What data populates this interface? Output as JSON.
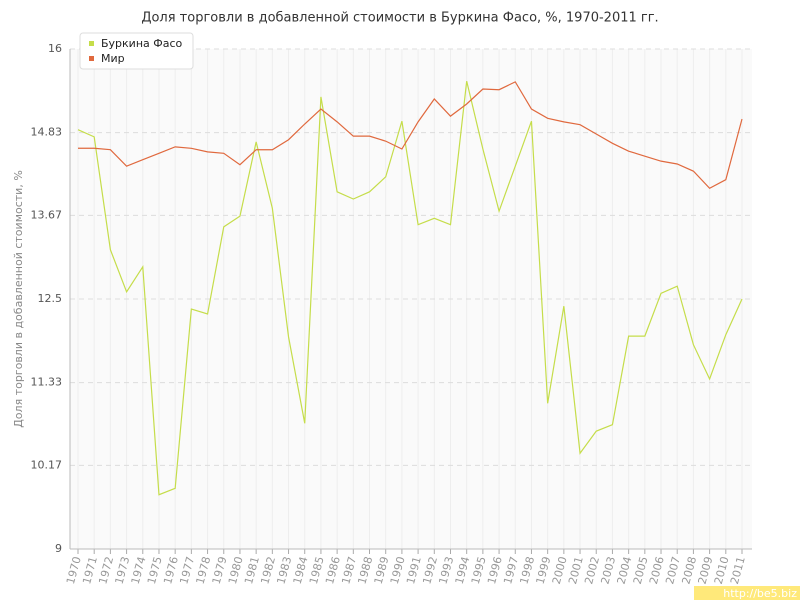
{
  "chart_data": {
    "type": "line",
    "title": "Доля торговли в добавленной стоимости в Буркина Фасо, %, 1970-2011 гг.",
    "y_label": "Доля торговли в добавленной стоимости, %",
    "watermark": "http://be5.biz",
    "categories": [
      "1970",
      "1971",
      "1972",
      "1973",
      "1974",
      "1975",
      "1976",
      "1977",
      "1978",
      "1979",
      "1980",
      "1981",
      "1982",
      "1983",
      "1984",
      "1985",
      "1986",
      "1987",
      "1988",
      "1989",
      "1990",
      "1991",
      "1992",
      "1993",
      "1994",
      "1995",
      "1996",
      "1997",
      "1998",
      "1999",
      "2000",
      "2001",
      "2002",
      "2003",
      "2004",
      "2005",
      "2006",
      "2007",
      "2008",
      "2009",
      "2010",
      "2011"
    ],
    "series": [
      {
        "name": "Буркина Фасо",
        "color": "#c5dd4a",
        "values": [
          14.87,
          14.77,
          13.19,
          12.6,
          12.95,
          9.76,
          9.85,
          12.36,
          12.29,
          13.51,
          13.66,
          14.7,
          13.77,
          11.97,
          10.76,
          15.33,
          14.0,
          13.9,
          14.0,
          14.21,
          14.99,
          13.54,
          13.63,
          13.54,
          15.55,
          14.6,
          13.73,
          14.36,
          14.99,
          11.04,
          12.4,
          10.34,
          10.65,
          10.74,
          11.98,
          11.98,
          12.58,
          12.68,
          11.86,
          11.38,
          12.0,
          12.5
        ]
      },
      {
        "name": "Мир",
        "color": "#e0693e",
        "values": [
          14.61,
          14.61,
          14.59,
          14.36,
          14.45,
          14.54,
          14.63,
          14.61,
          14.56,
          14.54,
          14.38,
          14.59,
          14.59,
          14.73,
          14.95,
          15.16,
          14.98,
          14.78,
          14.78,
          14.71,
          14.6,
          14.98,
          15.3,
          15.06,
          15.23,
          15.44,
          15.43,
          15.54,
          15.16,
          15.03,
          14.98,
          14.94,
          14.81,
          14.68,
          14.57,
          14.5,
          14.43,
          14.39,
          14.29,
          14.05,
          14.17,
          15.02
        ]
      }
    ],
    "ylim": [
      9,
      16
    ],
    "yticks": [
      9,
      10.17,
      11.33,
      12.5,
      13.67,
      14.83,
      16
    ],
    "grid": true,
    "legend": "top-left"
  }
}
